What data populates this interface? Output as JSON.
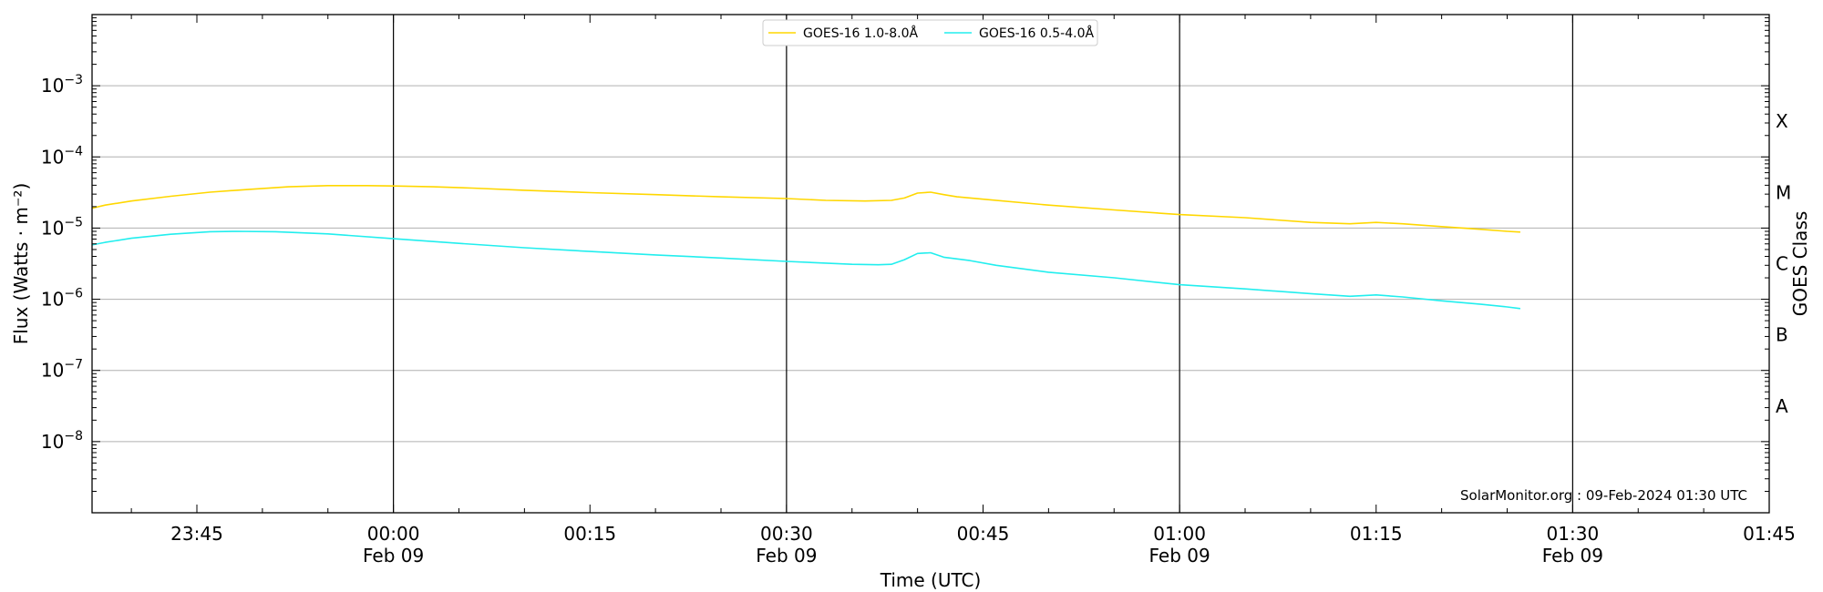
{
  "chart_data": {
    "type": "line",
    "xlabel": "Time (UTC)",
    "ylabel": "Flux (Watts · m⁻²)",
    "y2label": "GOES Class",
    "yscale": "log",
    "xlim": [
      "2024-02-08 23:37",
      "2024-02-09 01:45"
    ],
    "ylim": [
      1e-09,
      0.01
    ],
    "grid": true,
    "legend_placement": "top-center",
    "x_ticks": [
      {
        "time": "2024-02-08 23:45",
        "line1": "23:45",
        "line2": ""
      },
      {
        "time": "2024-02-09 00:00",
        "line1": "00:00",
        "line2": "Feb 09",
        "event_line": true
      },
      {
        "time": "2024-02-09 00:15",
        "line1": "00:15",
        "line2": ""
      },
      {
        "time": "2024-02-09 00:30",
        "line1": "00:30",
        "line2": "Feb 09",
        "event_line": true
      },
      {
        "time": "2024-02-09 00:45",
        "line1": "00:45",
        "line2": ""
      },
      {
        "time": "2024-02-09 01:00",
        "line1": "01:00",
        "line2": "Feb 09",
        "event_line": true
      },
      {
        "time": "2024-02-09 01:15",
        "line1": "01:15",
        "line2": ""
      },
      {
        "time": "2024-02-09 01:30",
        "line1": "01:30",
        "line2": "Feb 09",
        "event_line": true
      },
      {
        "time": "2024-02-09 01:45",
        "line1": "01:45",
        "line2": ""
      }
    ],
    "y_ticks": [
      {
        "value": 0.001,
        "base": "10",
        "exp": "−3"
      },
      {
        "value": 0.0001,
        "base": "10",
        "exp": "−4"
      },
      {
        "value": 1e-05,
        "base": "10",
        "exp": "−5"
      },
      {
        "value": 1e-06,
        "base": "10",
        "exp": "−6"
      },
      {
        "value": 1e-07,
        "base": "10",
        "exp": "−7"
      },
      {
        "value": 1e-08,
        "base": "10",
        "exp": "−8"
      }
    ],
    "goes_classes": [
      {
        "label": "X",
        "flux_min": 0.0001
      },
      {
        "label": "M",
        "flux_min": 1e-05
      },
      {
        "label": "C",
        "flux_min": 1e-06
      },
      {
        "label": "B",
        "flux_min": 1e-07
      },
      {
        "label": "A",
        "flux_min": 1e-08
      }
    ],
    "series": [
      {
        "name": "GOES-16 1.0-8.0Å",
        "color": "#FFD700",
        "points": [
          [
            "2024-02-08 23:37",
            1.9e-05
          ],
          [
            "2024-02-08 23:38",
            2.1e-05
          ],
          [
            "2024-02-08 23:40",
            2.4e-05
          ],
          [
            "2024-02-08 23:43",
            2.8e-05
          ],
          [
            "2024-02-08 23:46",
            3.2e-05
          ],
          [
            "2024-02-08 23:49",
            3.5e-05
          ],
          [
            "2024-02-08 23:52",
            3.8e-05
          ],
          [
            "2024-02-08 23:55",
            3.95e-05
          ],
          [
            "2024-02-08 23:58",
            3.95e-05
          ],
          [
            "2024-02-09 00:00",
            3.9e-05
          ],
          [
            "2024-02-09 00:03",
            3.8e-05
          ],
          [
            "2024-02-09 00:06",
            3.65e-05
          ],
          [
            "2024-02-09 00:10",
            3.4e-05
          ],
          [
            "2024-02-09 00:15",
            3.15e-05
          ],
          [
            "2024-02-09 00:20",
            2.95e-05
          ],
          [
            "2024-02-09 00:25",
            2.75e-05
          ],
          [
            "2024-02-09 00:30",
            2.6e-05
          ],
          [
            "2024-02-09 00:33",
            2.45e-05
          ],
          [
            "2024-02-09 00:36",
            2.4e-05
          ],
          [
            "2024-02-09 00:38",
            2.45e-05
          ],
          [
            "2024-02-09 00:39",
            2.65e-05
          ],
          [
            "2024-02-09 00:40",
            3.1e-05
          ],
          [
            "2024-02-09 00:41",
            3.2e-05
          ],
          [
            "2024-02-09 00:42",
            2.95e-05
          ],
          [
            "2024-02-09 00:43",
            2.75e-05
          ],
          [
            "2024-02-09 00:45",
            2.55e-05
          ],
          [
            "2024-02-09 00:50",
            2.1e-05
          ],
          [
            "2024-02-09 00:55",
            1.8e-05
          ],
          [
            "2024-02-09 01:00",
            1.55e-05
          ],
          [
            "2024-02-09 01:05",
            1.4e-05
          ],
          [
            "2024-02-09 01:10",
            1.2e-05
          ],
          [
            "2024-02-09 01:13",
            1.15e-05
          ],
          [
            "2024-02-09 01:15",
            1.2e-05
          ],
          [
            "2024-02-09 01:17",
            1.15e-05
          ],
          [
            "2024-02-09 01:20",
            1.05e-05
          ],
          [
            "2024-02-09 01:23",
            9.6e-06
          ],
          [
            "2024-02-09 01:25",
            9e-06
          ],
          [
            "2024-02-09 01:26",
            8.8e-06
          ]
        ]
      },
      {
        "name": "GOES-16 0.5-4.0Å",
        "color": "#22EEEE",
        "points": [
          [
            "2024-02-08 23:37",
            5.8e-06
          ],
          [
            "2024-02-08 23:38",
            6.3e-06
          ],
          [
            "2024-02-08 23:40",
            7.2e-06
          ],
          [
            "2024-02-08 23:43",
            8.2e-06
          ],
          [
            "2024-02-08 23:46",
            8.9e-06
          ],
          [
            "2024-02-08 23:48",
            9e-06
          ],
          [
            "2024-02-08 23:51",
            8.9e-06
          ],
          [
            "2024-02-08 23:55",
            8.3e-06
          ],
          [
            "2024-02-09 00:00",
            7.1e-06
          ],
          [
            "2024-02-09 00:05",
            6.1e-06
          ],
          [
            "2024-02-09 00:10",
            5.3e-06
          ],
          [
            "2024-02-09 00:15",
            4.7e-06
          ],
          [
            "2024-02-09 00:20",
            4.2e-06
          ],
          [
            "2024-02-09 00:25",
            3.8e-06
          ],
          [
            "2024-02-09 00:30",
            3.4e-06
          ],
          [
            "2024-02-09 00:35",
            3.1e-06
          ],
          [
            "2024-02-09 00:37",
            3.05e-06
          ],
          [
            "2024-02-09 00:38",
            3.1e-06
          ],
          [
            "2024-02-09 00:39",
            3.6e-06
          ],
          [
            "2024-02-09 00:40",
            4.4e-06
          ],
          [
            "2024-02-09 00:41",
            4.5e-06
          ],
          [
            "2024-02-09 00:42",
            3.9e-06
          ],
          [
            "2024-02-09 00:44",
            3.5e-06
          ],
          [
            "2024-02-09 00:46",
            3e-06
          ],
          [
            "2024-02-09 00:50",
            2.4e-06
          ],
          [
            "2024-02-09 00:55",
            2e-06
          ],
          [
            "2024-02-09 01:00",
            1.6e-06
          ],
          [
            "2024-02-09 01:05",
            1.4e-06
          ],
          [
            "2024-02-09 01:10",
            1.2e-06
          ],
          [
            "2024-02-09 01:13",
            1.1e-06
          ],
          [
            "2024-02-09 01:15",
            1.15e-06
          ],
          [
            "2024-02-09 01:17",
            1.08e-06
          ],
          [
            "2024-02-09 01:20",
            9.5e-07
          ],
          [
            "2024-02-09 01:23",
            8.5e-07
          ],
          [
            "2024-02-09 01:25",
            7.8e-07
          ],
          [
            "2024-02-09 01:26",
            7.4e-07
          ]
        ]
      }
    ],
    "annotation": "SolarMonitor.org : 09-Feb-2024 01:30 UTC"
  }
}
